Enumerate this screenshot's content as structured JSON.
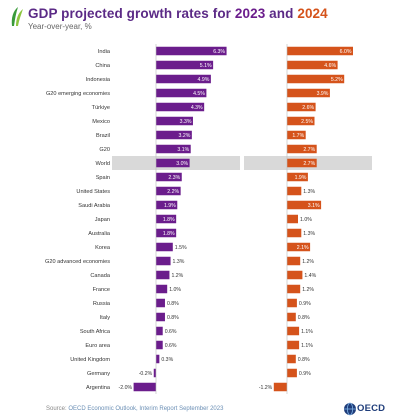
{
  "header": {
    "title_prefix": "GDP projected growth rates for ",
    "year1": "2023",
    "title_mid": " and ",
    "year2": "2024",
    "subtitle": "Year-over-year, %"
  },
  "colors": {
    "series_2023": "#6b1d8c",
    "series_2024": "#d5531b",
    "world_band": "#d9d9d9",
    "title": "#5b2a86"
  },
  "chart_data": {
    "type": "bar",
    "orientation": "horizontal",
    "categories": [
      "India",
      "China",
      "Indonesia",
      "G20 emerging economies",
      "Türkiye",
      "Mexico",
      "Brazil",
      "G20",
      "World",
      "Spain",
      "United States",
      "Saudi Arabia",
      "Japan",
      "Australia",
      "Korea",
      "G20 advanced economies",
      "Canada",
      "France",
      "Russia",
      "Italy",
      "South Africa",
      "Euro area",
      "United Kingdom",
      "Germany",
      "Argentina"
    ],
    "highlight_category": "World",
    "series": [
      {
        "name": "2023",
        "values": [
          6.3,
          5.1,
          4.9,
          4.5,
          4.3,
          3.3,
          3.2,
          3.1,
          3.0,
          2.3,
          2.2,
          1.9,
          1.8,
          1.8,
          1.5,
          1.3,
          1.2,
          1.0,
          0.8,
          0.8,
          0.6,
          0.6,
          0.3,
          -0.2,
          -2.0
        ],
        "labels": [
          "6.3%",
          "5.1%",
          "4.9%",
          "4.5%",
          "4.3%",
          "3.3%",
          "3.2%",
          "3.1%",
          "3.0%",
          "2.3%",
          "2.2%",
          "1.9%",
          "1.8%",
          "1.8%",
          "1.5%",
          "1.3%",
          "1.2%",
          "1.0%",
          "0.8%",
          "0.8%",
          "0.6%",
          "0.6%",
          "0.3%",
          "-0.2%",
          "-2.0%"
        ]
      },
      {
        "name": "2024",
        "values": [
          6.0,
          4.6,
          5.2,
          3.9,
          2.6,
          2.5,
          1.7,
          2.7,
          2.7,
          1.9,
          1.3,
          3.1,
          1.0,
          1.3,
          2.1,
          1.2,
          1.4,
          1.2,
          0.9,
          0.8,
          1.1,
          1.1,
          0.8,
          0.9,
          -1.2
        ],
        "labels": [
          "6.0%",
          "4.6%",
          "5.2%",
          "3.9%",
          "2.6%",
          "2.5%",
          "1.7%",
          "2.7%",
          "2.7%",
          "1.9%",
          "1.3%",
          "3.1%",
          "1.0%",
          "1.3%",
          "2.1%",
          "1.2%",
          "1.4%",
          "1.2%",
          "0.9%",
          "0.8%",
          "1.1%",
          "1.1%",
          "0.8%",
          "0.9%",
          "-1.2%"
        ]
      }
    ]
  },
  "footer": {
    "source_label": "Source: ",
    "source_text": "OECD Economic Outlook, Interim Report September 2023",
    "logo_text": "OECD"
  }
}
